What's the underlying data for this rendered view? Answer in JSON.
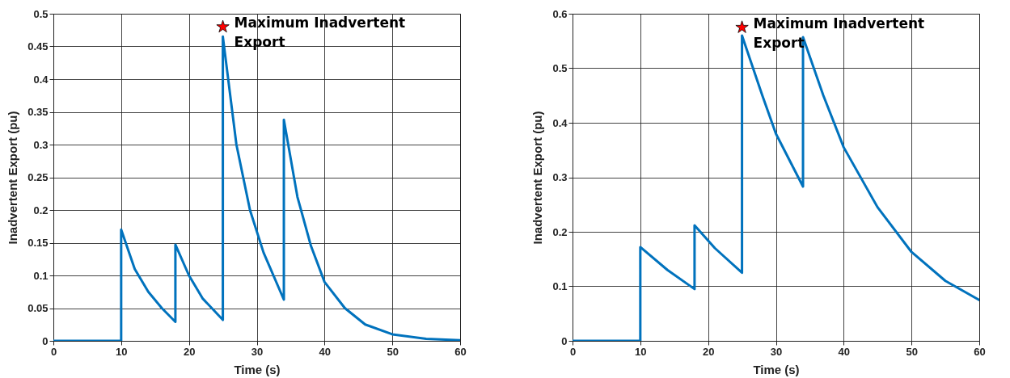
{
  "chart_data": [
    {
      "type": "line",
      "xlabel": "Time (s)",
      "ylabel": "Inadvertent Export (pu)",
      "xlim": [
        0,
        60
      ],
      "xticks": [
        0,
        10,
        20,
        30,
        40,
        50,
        60
      ],
      "ylim": [
        0,
        0.5
      ],
      "yticks": [
        0,
        0.05,
        0.1,
        0.15,
        0.2,
        0.25,
        0.3,
        0.35,
        0.4,
        0.45,
        0.5
      ],
      "grid": true,
      "line_style": "solid",
      "marker": "none",
      "annotations": [
        {
          "text": "Maximum Inadvertent Export",
          "x": 25,
          "y": 0.48
        }
      ],
      "series": [
        {
          "color": "#0072bd",
          "x": [
            0,
            10,
            10,
            12,
            14,
            16,
            18,
            18,
            20,
            22,
            25,
            25,
            27,
            29,
            31,
            34,
            34,
            36,
            38,
            40,
            43,
            46,
            50,
            55,
            60
          ],
          "values": [
            0,
            0,
            0.17,
            0.11,
            0.075,
            0.05,
            0.029,
            0.147,
            0.1,
            0.065,
            0.032,
            0.465,
            0.3,
            0.2,
            0.135,
            0.063,
            0.338,
            0.22,
            0.145,
            0.09,
            0.05,
            0.025,
            0.01,
            0.003,
            0.001
          ]
        }
      ]
    },
    {
      "type": "line",
      "xlabel": "Time (s)",
      "ylabel": "Inadvertent Export (pu)",
      "xlim": [
        0,
        60
      ],
      "xticks": [
        0,
        10,
        20,
        30,
        40,
        50,
        60
      ],
      "ylim": [
        0,
        0.6
      ],
      "yticks": [
        0,
        0.1,
        0.2,
        0.3,
        0.4,
        0.5,
        0.6
      ],
      "grid": true,
      "line_style": "solid",
      "marker": "none",
      "annotations": [
        {
          "text": "Maximum Inadvertent Export",
          "x": 25,
          "y": 0.575
        }
      ],
      "series": [
        {
          "color": "#0072bd",
          "x": [
            0,
            10,
            10,
            14,
            18,
            18,
            21,
            25,
            25,
            28,
            30,
            34,
            34,
            37,
            40,
            45,
            50,
            55,
            60
          ],
          "values": [
            0,
            0,
            0.172,
            0.13,
            0.095,
            0.212,
            0.17,
            0.125,
            0.56,
            0.45,
            0.38,
            0.283,
            0.557,
            0.45,
            0.355,
            0.245,
            0.163,
            0.11,
            0.075
          ]
        }
      ]
    }
  ]
}
